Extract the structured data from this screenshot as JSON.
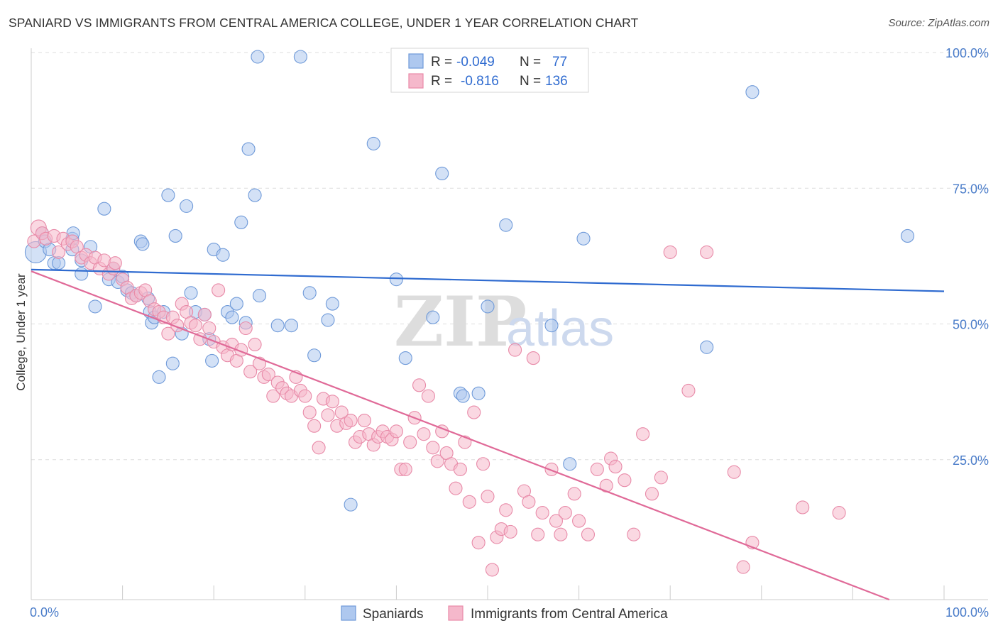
{
  "header": {
    "title": "SPANIARD VS IMMIGRANTS FROM CENTRAL AMERICA COLLEGE, UNDER 1 YEAR CORRELATION CHART",
    "source": "Source: ZipAtlas.com"
  },
  "watermark": {
    "zip": "ZIP",
    "atlas": "atlas"
  },
  "legend": {
    "rows": [
      {
        "r_label": "R =",
        "r_value": "-0.049",
        "n_label": "N =",
        "n_value": "77"
      },
      {
        "r_label": "R =",
        "r_value": "-0.816",
        "n_label": "N =",
        "n_value": "136"
      }
    ]
  },
  "bottom_legend": {
    "items": [
      "Spaniards",
      "Immigrants from Central America"
    ]
  },
  "colors": {
    "blue_fill": "#aec8ef",
    "blue_stroke": "#6f9ad9",
    "blue_line": "#2f6bd0",
    "pink_fill": "#f5b8cb",
    "pink_stroke": "#e88aa8",
    "pink_line": "#e06a98",
    "grid": "#dddddd"
  },
  "chart_data": {
    "type": "scatter",
    "title": "SPANIARD VS IMMIGRANTS FROM CENTRAL AMERICA COLLEGE, UNDER 1 YEAR CORRELATION CHART",
    "ylabel": "College, Under 1 year",
    "xlabel": "",
    "xlim": [
      0,
      100
    ],
    "ylim": [
      0,
      100
    ],
    "x_tick_labels": [
      "0.0%",
      "100.0%"
    ],
    "y_tick_labels": [
      "25.0%",
      "50.0%",
      "75.0%",
      "100.0%"
    ],
    "y_ticks": [
      25,
      50,
      75,
      100
    ],
    "grid": true,
    "series": [
      {
        "name": "Spaniards",
        "R": -0.049,
        "N": 77,
        "trend": {
          "x": [
            0,
            100
          ],
          "y": [
            60.8,
            56.8
          ]
        },
        "points": [
          [
            0.5,
            64
          ],
          [
            1.2,
            67.5
          ],
          [
            1.5,
            66
          ],
          [
            2,
            64.5
          ],
          [
            2.5,
            62
          ],
          [
            3,
            62
          ],
          [
            4.5,
            64.5
          ],
          [
            4.5,
            66.5
          ],
          [
            4.6,
            67.5
          ],
          [
            5.5,
            62.5
          ],
          [
            5.5,
            60
          ],
          [
            6.5,
            65
          ],
          [
            7,
            54
          ],
          [
            8,
            72
          ],
          [
            8.5,
            59
          ],
          [
            9,
            61
          ],
          [
            9.5,
            58.5
          ],
          [
            10,
            59.5
          ],
          [
            10.5,
            57
          ],
          [
            11,
            56.5
          ],
          [
            11.5,
            56
          ],
          [
            12,
            66
          ],
          [
            12.2,
            65.5
          ],
          [
            12.8,
            55.5
          ],
          [
            13,
            53
          ],
          [
            13.2,
            51
          ],
          [
            13.5,
            52
          ],
          [
            14,
            41
          ],
          [
            14.5,
            53
          ],
          [
            15,
            74.5
          ],
          [
            15.5,
            43.5
          ],
          [
            15.8,
            67
          ],
          [
            16.5,
            49
          ],
          [
            17,
            72.5
          ],
          [
            17.5,
            56.5
          ],
          [
            18,
            53
          ],
          [
            19,
            52.5
          ],
          [
            19.5,
            48
          ],
          [
            19.8,
            44
          ],
          [
            20,
            64.5
          ],
          [
            21,
            63.5
          ],
          [
            21.5,
            53
          ],
          [
            22,
            52
          ],
          [
            22.5,
            54.5
          ],
          [
            23,
            69.5
          ],
          [
            23.5,
            51
          ],
          [
            23.8,
            83
          ],
          [
            24.5,
            74.5
          ],
          [
            24.8,
            100
          ],
          [
            25,
            56
          ],
          [
            27,
            50.5
          ],
          [
            28.5,
            50.5
          ],
          [
            29.5,
            100
          ],
          [
            30.5,
            56.5
          ],
          [
            31,
            45
          ],
          [
            32.5,
            51.5
          ],
          [
            33,
            54.5
          ],
          [
            35,
            17.5
          ],
          [
            37.5,
            84
          ],
          [
            40,
            59
          ],
          [
            41,
            44.5
          ],
          [
            44,
            52
          ],
          [
            45,
            78.5
          ],
          [
            47,
            38
          ],
          [
            47.3,
            37.5
          ],
          [
            49,
            38
          ],
          [
            50,
            54
          ],
          [
            52,
            69
          ],
          [
            57,
            50.5
          ],
          [
            59,
            25
          ],
          [
            60.5,
            66.5
          ],
          [
            74,
            46.5
          ],
          [
            79,
            93.5
          ],
          [
            96,
            67
          ]
        ]
      },
      {
        "name": "Immigrants from Central America",
        "R": -0.816,
        "N": 136,
        "trend": {
          "x": [
            0,
            94
          ],
          "y": [
            60.5,
            0
          ]
        },
        "points": [
          [
            0.3,
            66
          ],
          [
            0.8,
            68.5
          ],
          [
            1.2,
            67.5
          ],
          [
            1.6,
            66.5
          ],
          [
            2.5,
            67
          ],
          [
            3,
            64
          ],
          [
            3.5,
            66.5
          ],
          [
            4,
            65.5
          ],
          [
            4.5,
            66
          ],
          [
            5,
            65
          ],
          [
            5.5,
            63
          ],
          [
            6,
            63.5
          ],
          [
            6.5,
            62
          ],
          [
            7,
            63
          ],
          [
            7.5,
            61
          ],
          [
            8,
            62.5
          ],
          [
            8.5,
            60
          ],
          [
            9,
            61
          ],
          [
            9.2,
            62
          ],
          [
            10,
            59
          ],
          [
            10.5,
            57.5
          ],
          [
            11,
            55.5
          ],
          [
            11.5,
            56
          ],
          [
            12,
            56.5
          ],
          [
            12.5,
            57
          ],
          [
            13,
            55
          ],
          [
            13.5,
            53.5
          ],
          [
            14,
            53
          ],
          [
            14.5,
            52
          ],
          [
            15,
            49
          ],
          [
            15.5,
            52
          ],
          [
            16,
            50.5
          ],
          [
            16.5,
            54.5
          ],
          [
            17,
            53
          ],
          [
            17.5,
            51
          ],
          [
            18,
            50.5
          ],
          [
            18.5,
            48
          ],
          [
            19,
            52.5
          ],
          [
            19.5,
            50
          ],
          [
            20,
            47.5
          ],
          [
            20.5,
            57
          ],
          [
            21,
            46.5
          ],
          [
            21.5,
            45
          ],
          [
            22,
            47
          ],
          [
            22.5,
            44
          ],
          [
            23,
            46
          ],
          [
            23.5,
            50
          ],
          [
            24,
            42
          ],
          [
            24.5,
            47
          ],
          [
            25,
            43.5
          ],
          [
            25.5,
            41
          ],
          [
            26,
            41.5
          ],
          [
            26.5,
            37.5
          ],
          [
            27,
            40
          ],
          [
            27.5,
            39
          ],
          [
            28,
            38
          ],
          [
            28.5,
            37.5
          ],
          [
            29,
            41
          ],
          [
            29.5,
            38.5
          ],
          [
            30,
            37.5
          ],
          [
            30.5,
            34.5
          ],
          [
            31,
            32
          ],
          [
            31.5,
            28
          ],
          [
            32,
            37
          ],
          [
            32.5,
            34
          ],
          [
            33,
            36.5
          ],
          [
            33.5,
            32
          ],
          [
            34,
            34.5
          ],
          [
            34.5,
            32.5
          ],
          [
            35,
            33
          ],
          [
            35.5,
            29
          ],
          [
            36,
            30
          ],
          [
            36.5,
            33
          ],
          [
            37,
            30.5
          ],
          [
            37.5,
            28.5
          ],
          [
            38,
            30
          ],
          [
            38.5,
            31
          ],
          [
            39,
            30
          ],
          [
            39.5,
            29.5
          ],
          [
            40,
            31
          ],
          [
            40.5,
            24
          ],
          [
            41,
            24
          ],
          [
            41.5,
            29
          ],
          [
            42,
            33.5
          ],
          [
            42.5,
            39.5
          ],
          [
            43,
            30.5
          ],
          [
            43.5,
            37.5
          ],
          [
            44,
            28
          ],
          [
            44.5,
            25.5
          ],
          [
            45,
            31
          ],
          [
            45.5,
            27
          ],
          [
            46,
            25
          ],
          [
            46.5,
            20.5
          ],
          [
            47,
            24
          ],
          [
            47.5,
            29
          ],
          [
            48,
            18
          ],
          [
            48.5,
            34.5
          ],
          [
            49,
            10.5
          ],
          [
            49.5,
            25
          ],
          [
            50,
            19
          ],
          [
            50.5,
            5.5
          ],
          [
            51,
            11.5
          ],
          [
            51.5,
            13
          ],
          [
            52,
            16.5
          ],
          [
            52.5,
            12.5
          ],
          [
            53,
            46
          ],
          [
            54,
            20
          ],
          [
            54.5,
            18
          ],
          [
            55,
            44.5
          ],
          [
            55.5,
            12
          ],
          [
            56,
            16
          ],
          [
            57,
            24
          ],
          [
            57.5,
            14.5
          ],
          [
            58,
            12
          ],
          [
            58.5,
            16
          ],
          [
            59.5,
            19.5
          ],
          [
            60,
            14.5
          ],
          [
            61,
            12
          ],
          [
            62,
            24
          ],
          [
            63,
            21
          ],
          [
            63.5,
            26
          ],
          [
            64,
            24.5
          ],
          [
            65,
            22
          ],
          [
            66,
            12
          ],
          [
            67,
            30.5
          ],
          [
            68,
            19.5
          ],
          [
            69,
            22.5
          ],
          [
            70,
            64
          ],
          [
            72,
            38.5
          ],
          [
            74,
            64
          ],
          [
            77,
            23.5
          ],
          [
            78,
            6
          ],
          [
            79,
            10.5
          ],
          [
            84.5,
            17
          ],
          [
            88.5,
            16
          ]
        ]
      }
    ]
  }
}
